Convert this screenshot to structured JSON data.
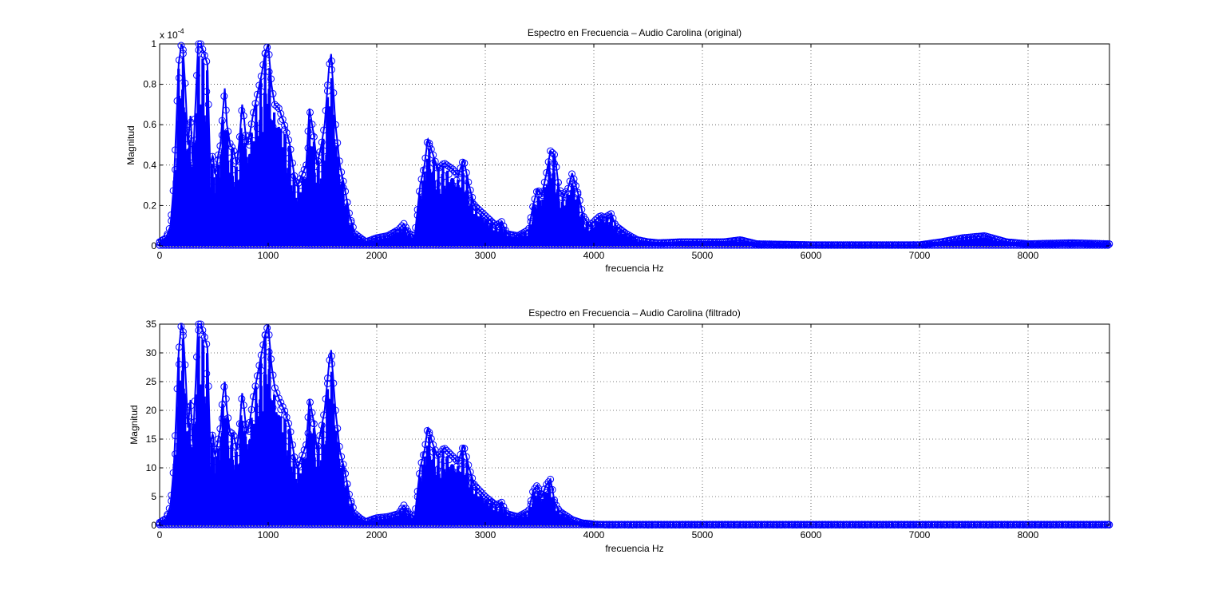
{
  "colors": {
    "series": "#0000ff",
    "background": "#ffffff",
    "axes": "#000000"
  },
  "chart_data": [
    {
      "type": "scatter",
      "title": "Espectro en Frecuencia – Audio Carolina (original)",
      "xlabel": "frecuencia Hz",
      "ylabel": "Magnitud",
      "y_exponent_label": "x 10",
      "y_exponent_power": "-4",
      "xlim": [
        0,
        8750
      ],
      "ylim": [
        0,
        1
      ],
      "grid": true,
      "marker": "circle",
      "xticks": [
        0,
        1000,
        2000,
        3000,
        4000,
        5000,
        6000,
        7000,
        8000
      ],
      "xtick_labels": [
        "0",
        "1000",
        "2000",
        "3000",
        "4000",
        "5000",
        "6000",
        "7000",
        "8000"
      ],
      "yticks": [
        0,
        0.2,
        0.4,
        0.6,
        0.8,
        1
      ],
      "ytick_labels": [
        "0",
        "0.2",
        "0.4",
        "0.6",
        "0.8",
        "1"
      ],
      "envelope": {
        "x": [
          0,
          60,
          100,
          130,
          150,
          175,
          200,
          215,
          240,
          260,
          285,
          305,
          330,
          355,
          380,
          410,
          440,
          465,
          490,
          510,
          540,
          560,
          580,
          600,
          620,
          650,
          680,
          710,
          740,
          760,
          780,
          800,
          830,
          860,
          900,
          940,
          970,
          1000,
          1030,
          1060,
          1100,
          1150,
          1200,
          1240,
          1270,
          1310,
          1350,
          1380,
          1420,
          1450,
          1490,
          1520,
          1560,
          1580,
          1620,
          1660,
          1700,
          1750,
          1800,
          1850,
          1900,
          1950,
          2000,
          2100,
          2200,
          2250,
          2300,
          2350,
          2400,
          2440,
          2470,
          2520,
          2560,
          2620,
          2700,
          2750,
          2800,
          2850,
          2900,
          3000,
          3100,
          3150,
          3200,
          3300,
          3400,
          3440,
          3480,
          3520,
          3560,
          3600,
          3640,
          3680,
          3720,
          3760,
          3800,
          3860,
          3900,
          3960,
          4000,
          4060,
          4100,
          4160,
          4200,
          4300,
          4400,
          4500,
          4600,
          4800,
          5000,
          5200,
          5350,
          5500,
          6000,
          6500,
          7000,
          7200,
          7400,
          7600,
          7800,
          8000,
          8400,
          8750
        ],
        "y": [
          0.02,
          0.04,
          0.1,
          0.3,
          0.55,
          0.9,
          1.0,
          0.98,
          0.75,
          0.5,
          0.65,
          0.4,
          0.7,
          1.0,
          1.0,
          0.95,
          0.9,
          0.4,
          0.45,
          0.35,
          0.45,
          0.5,
          0.65,
          0.78,
          0.6,
          0.5,
          0.48,
          0.4,
          0.55,
          0.7,
          0.62,
          0.5,
          0.55,
          0.65,
          0.75,
          0.85,
          0.95,
          1.0,
          0.8,
          0.7,
          0.68,
          0.6,
          0.5,
          0.35,
          0.3,
          0.35,
          0.4,
          0.68,
          0.55,
          0.4,
          0.5,
          0.6,
          0.88,
          0.95,
          0.6,
          0.4,
          0.3,
          0.15,
          0.06,
          0.04,
          0.02,
          0.03,
          0.04,
          0.05,
          0.08,
          0.11,
          0.06,
          0.05,
          0.3,
          0.4,
          0.53,
          0.45,
          0.38,
          0.41,
          0.38,
          0.35,
          0.43,
          0.3,
          0.2,
          0.15,
          0.1,
          0.12,
          0.06,
          0.05,
          0.08,
          0.2,
          0.28,
          0.25,
          0.35,
          0.47,
          0.45,
          0.28,
          0.25,
          0.28,
          0.36,
          0.25,
          0.15,
          0.1,
          0.12,
          0.15,
          0.14,
          0.16,
          0.1,
          0.06,
          0.03,
          0.02,
          0.015,
          0.02,
          0.02,
          0.02,
          0.03,
          0.01,
          0.005,
          0.005,
          0.005,
          0.02,
          0.04,
          0.05,
          0.02,
          0.01,
          0.015,
          0.01
        ]
      }
    },
    {
      "type": "scatter",
      "title": "Espectro en Frecuencia – Audio Carolina (filtrado)",
      "xlabel": "frecuencia Hz",
      "ylabel": "Magnitud",
      "xlim": [
        0,
        8750
      ],
      "ylim": [
        0,
        35
      ],
      "grid": true,
      "marker": "circle",
      "xticks": [
        0,
        1000,
        2000,
        3000,
        4000,
        5000,
        6000,
        7000,
        8000
      ],
      "xtick_labels": [
        "0",
        "1000",
        "2000",
        "3000",
        "4000",
        "5000",
        "6000",
        "7000",
        "8000"
      ],
      "yticks": [
        0,
        5,
        10,
        15,
        20,
        25,
        30,
        35
      ],
      "ytick_labels": [
        "0",
        "5",
        "10",
        "15",
        "20",
        "25",
        "30",
        "35"
      ],
      "envelope": {
        "x": [
          0,
          60,
          100,
          130,
          150,
          175,
          200,
          215,
          240,
          260,
          285,
          305,
          330,
          355,
          380,
          410,
          440,
          465,
          490,
          510,
          540,
          560,
          580,
          600,
          620,
          650,
          680,
          710,
          740,
          760,
          780,
          800,
          830,
          860,
          900,
          940,
          970,
          1000,
          1030,
          1060,
          1100,
          1150,
          1200,
          1240,
          1270,
          1310,
          1350,
          1380,
          1420,
          1450,
          1490,
          1520,
          1560,
          1580,
          1620,
          1660,
          1700,
          1750,
          1800,
          1850,
          1900,
          1950,
          2000,
          2100,
          2200,
          2250,
          2300,
          2350,
          2400,
          2440,
          2470,
          2520,
          2560,
          2620,
          2700,
          2750,
          2800,
          2850,
          2900,
          3000,
          3100,
          3150,
          3200,
          3300,
          3400,
          3440,
          3480,
          3520,
          3560,
          3600,
          3640,
          3680,
          3720,
          3760,
          3800,
          3860,
          3900,
          3960,
          4000,
          4060,
          4100,
          4160,
          4200,
          4300,
          4400,
          4500,
          4600,
          4800,
          5000,
          5200,
          5350,
          5500,
          6000,
          6500,
          7000,
          7200,
          7400,
          7600,
          7800,
          8000,
          8400,
          8750
        ],
        "y": [
          0.5,
          1.2,
          3.5,
          10,
          18,
          30,
          35,
          34,
          26,
          17,
          22,
          14,
          24,
          35,
          35,
          33,
          31,
          14,
          16,
          12,
          15,
          17,
          22,
          25,
          20,
          16,
          16,
          13,
          18,
          23,
          20,
          16,
          18,
          22,
          26,
          30,
          33,
          35,
          28,
          24,
          22,
          20,
          17,
          12,
          10,
          12,
          14,
          22,
          18,
          13,
          17,
          20,
          28,
          30.5,
          20,
          13,
          10,
          5,
          2,
          1.2,
          0.6,
          1,
          1.3,
          1.5,
          2,
          3.5,
          2,
          1.5,
          10,
          13,
          17,
          14,
          12,
          13.5,
          12,
          11,
          14,
          10,
          7,
          5,
          3.5,
          4,
          2,
          1.5,
          2.5,
          6,
          7,
          5,
          7,
          8,
          4,
          2.5,
          2,
          1.5,
          1,
          0.6,
          0.4,
          0.3,
          0.2,
          0.15,
          0.1,
          0.1,
          0.1,
          0.1,
          0.1,
          0.1,
          0.1,
          0.1,
          0.1,
          0.1,
          0.1,
          0.1,
          0.1,
          0.1,
          0.1,
          0.1,
          0.1,
          0.1,
          0.1,
          0.1,
          0.1,
          0.1
        ]
      }
    }
  ]
}
